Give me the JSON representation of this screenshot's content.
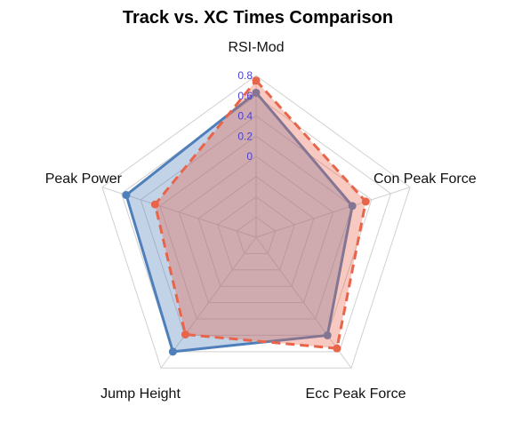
{
  "chart_data": {
    "type": "radar",
    "title": "Track vs. XC Times Comparison",
    "axes": [
      "RSI-Mod",
      "Con Peak Force",
      "Ecc Peak Force",
      "Jump Height",
      "Peak Power"
    ],
    "ticks": [
      "0",
      "0.2",
      "0.4",
      "0.6",
      "0.8"
    ],
    "range": [
      -0.8,
      0.8
    ],
    "series": [
      {
        "name": "Track",
        "values": [
          0.63,
          0.2,
          0.4,
          0.6,
          0.55
        ],
        "color": "#4f7fba",
        "fill": "#4f7fba",
        "line_style": "solid"
      },
      {
        "name": "XC",
        "values": [
          0.75,
          0.34,
          0.56,
          0.39,
          0.25
        ],
        "color": "#e8654a",
        "fill": "#e8654a",
        "line_style": "dashed"
      }
    ]
  }
}
